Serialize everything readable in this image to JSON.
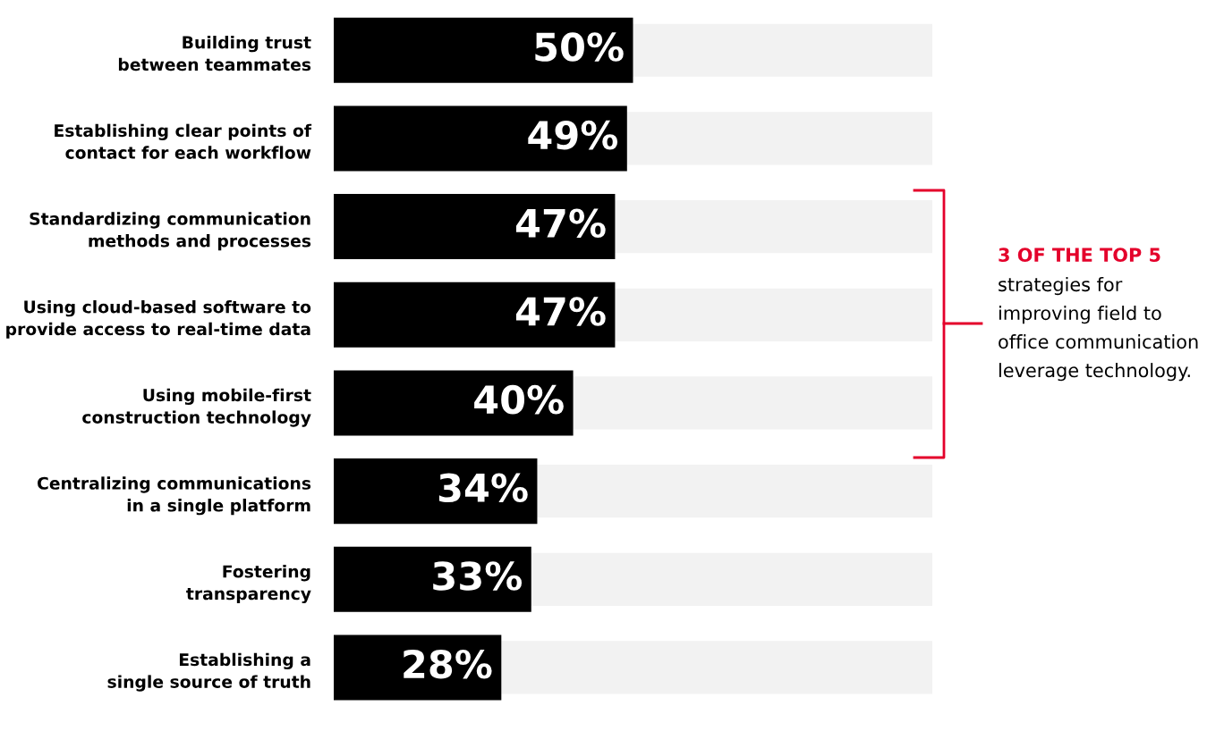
{
  "chart_data": {
    "type": "bar",
    "orientation": "horizontal",
    "stacked": true,
    "categories": [
      "Building trust\nbetween teammates",
      "Establishing clear points of\ncontact for each workflow",
      "Standardizing communication\nmethods and processes",
      "Using cloud-based software to\nprovide access to real-time data",
      "Using mobile-first\nconstruction technology",
      "Centralizing communications\nin a single platform",
      "Fostering\ntransparency",
      "Establishing a\nsingle source of truth"
    ],
    "series": [
      {
        "color": "#000000",
        "values": [
          50,
          49,
          47,
          47,
          40,
          34,
          33,
          28
        ],
        "value_labels": [
          "50%",
          "49%",
          "47%",
          "47%",
          "40%",
          "34%",
          "33%",
          "28%"
        ]
      },
      {
        "color": "#f2f2f2",
        "values": [
          50,
          51,
          53,
          53,
          60,
          66,
          67,
          72
        ]
      }
    ],
    "xlim": [
      0,
      100
    ],
    "tick_labels": "y",
    "grid": false,
    "legend": false,
    "annotations": [
      "3 OF THE TOP 5",
      "strategies for\nimproving field to\noffice communication\nleverage technology."
    ]
  }
}
